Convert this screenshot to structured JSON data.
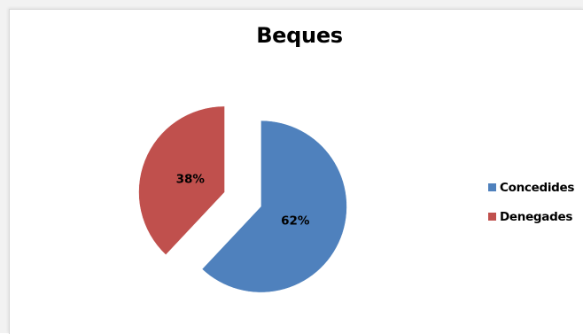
{
  "chart_data": {
    "type": "pie",
    "title": "Beques",
    "categories": [
      "Concedides",
      "Denegades"
    ],
    "values": [
      62,
      38
    ],
    "data_labels": [
      "62%",
      "38%"
    ],
    "colors": [
      "#4F81BD",
      "#C0504D"
    ],
    "exploded": true,
    "legend_position": "right"
  }
}
